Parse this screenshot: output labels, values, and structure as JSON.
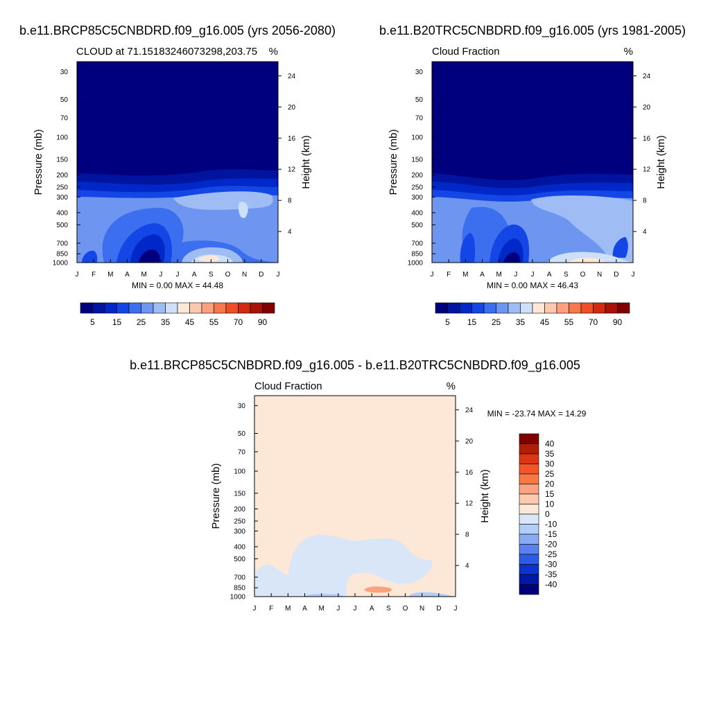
{
  "chart_data": [
    {
      "type": "heatmap",
      "title": "b.e11.BRCP85C5CNBDRD.f09_g16.005 (yrs 2056-2080)",
      "subtitle_left": "CLOUD at 71.15183246073298,203.75",
      "subtitle_right": "%",
      "ylabel": "Pressure (mb)",
      "ylabel_right": "Height (km)",
      "x_ticks": [
        "J",
        "F",
        "M",
        "A",
        "M",
        "J",
        "J",
        "A",
        "S",
        "O",
        "N",
        "D",
        "J"
      ],
      "y_ticks": [
        30,
        50,
        70,
        100,
        150,
        200,
        250,
        300,
        400,
        500,
        700,
        850,
        1000
      ],
      "y_ticks_right": [
        24,
        20,
        16,
        12,
        8,
        4
      ],
      "ylim": [
        1000,
        25
      ],
      "minmax_text": "MIN =   0.00 MAX =  44.48",
      "min": 0.0,
      "max": 44.48,
      "colorbar": {
        "orientation": "horizontal",
        "levels": [
          5,
          10,
          15,
          20,
          25,
          30,
          35,
          40,
          45,
          50,
          55,
          60,
          70,
          80,
          90
        ],
        "labels": [
          "5",
          "15",
          "25",
          "35",
          "45",
          "55",
          "70",
          "90"
        ],
        "colors": [
          "#00007f",
          "#0014a0",
          "#0028c8",
          "#1446e6",
          "#3c6ef0",
          "#6e96f0",
          "#a0bcf5",
          "#cde0f8",
          "#fde8d8",
          "#fcc8b0",
          "#fca07e",
          "#f8784e",
          "#ee4f2a",
          "#d02a10",
          "#a81206",
          "#800000"
        ]
      },
      "description_fields": [
        {
          "level_mb": 25,
          "values_by_month": [
            0,
            0,
            0,
            0,
            0,
            0,
            0,
            0,
            0,
            0,
            0,
            0,
            0
          ]
        },
        {
          "level_mb": 200,
          "values_by_month": [
            3,
            3,
            3,
            3,
            3,
            3,
            3,
            3,
            3,
            3,
            3,
            3,
            3
          ]
        },
        {
          "level_mb": 250,
          "values_by_month": [
            14,
            14,
            12,
            12,
            11,
            12,
            15,
            15,
            15,
            14,
            14,
            14,
            14
          ]
        },
        {
          "level_mb": 300,
          "values_by_month": [
            22,
            24,
            22,
            20,
            20,
            22,
            30,
            30,
            30,
            30,
            28,
            25,
            22
          ]
        },
        {
          "level_mb": 400,
          "values_by_month": [
            25,
            25,
            22,
            20,
            20,
            24,
            35,
            35,
            35,
            32,
            35,
            30,
            25
          ]
        },
        {
          "level_mb": 500,
          "values_by_month": [
            25,
            25,
            20,
            15,
            15,
            24,
            33,
            33,
            32,
            30,
            30,
            28,
            25
          ]
        },
        {
          "level_mb": 700,
          "values_by_month": [
            20,
            14,
            12,
            10,
            10,
            18,
            28,
            30,
            32,
            28,
            25,
            20,
            20
          ]
        },
        {
          "level_mb": 850,
          "values_by_month": [
            22,
            12,
            10,
            8,
            5,
            18,
            32,
            40,
            42,
            30,
            30,
            25,
            22
          ]
        },
        {
          "level_mb": 1000,
          "values_by_month": [
            20,
            10,
            10,
            10,
            10,
            15,
            28,
            32,
            30,
            25,
            25,
            20,
            20
          ]
        }
      ]
    },
    {
      "type": "heatmap",
      "title": "b.e11.B20TRC5CNBDRD.f09_g16.005 (yrs 1981-2005)",
      "subtitle_left": "Cloud Fraction",
      "subtitle_right": "%",
      "ylabel": "Pressure (mb)",
      "ylabel_right": "Height (km)",
      "x_ticks": [
        "J",
        "F",
        "M",
        "A",
        "M",
        "J",
        "J",
        "A",
        "S",
        "O",
        "N",
        "D",
        "J"
      ],
      "y_ticks": [
        30,
        50,
        70,
        100,
        150,
        200,
        250,
        300,
        400,
        500,
        700,
        850,
        1000
      ],
      "y_ticks_right": [
        24,
        20,
        16,
        12,
        8,
        4
      ],
      "ylim": [
        1000,
        25
      ],
      "minmax_text": "MIN =   0.00 MAX =  46.43",
      "min": 0.0,
      "max": 46.43,
      "colorbar": {
        "orientation": "horizontal",
        "levels": [
          5,
          10,
          15,
          20,
          25,
          30,
          35,
          40,
          45,
          50,
          55,
          60,
          70,
          80,
          90
        ],
        "labels": [
          "5",
          "15",
          "25",
          "35",
          "45",
          "55",
          "70",
          "90"
        ],
        "colors": [
          "#00007f",
          "#0014a0",
          "#0028c8",
          "#1446e6",
          "#3c6ef0",
          "#6e96f0",
          "#a0bcf5",
          "#cde0f8",
          "#fde8d8",
          "#fcc8b0",
          "#fca07e",
          "#f8784e",
          "#ee4f2a",
          "#d02a10",
          "#a81206",
          "#800000"
        ]
      },
      "description_fields": [
        {
          "level_mb": 25,
          "values_by_month": [
            0,
            0,
            0,
            0,
            0,
            0,
            0,
            0,
            0,
            0,
            0,
            0,
            0
          ]
        },
        {
          "level_mb": 200,
          "values_by_month": [
            3,
            3,
            3,
            3,
            3,
            3,
            3,
            3,
            3,
            3,
            3,
            3,
            3
          ]
        },
        {
          "level_mb": 250,
          "values_by_month": [
            14,
            14,
            14,
            12,
            12,
            12,
            14,
            15,
            15,
            14,
            14,
            14,
            14
          ]
        },
        {
          "level_mb": 300,
          "values_by_month": [
            22,
            22,
            20,
            20,
            22,
            25,
            30,
            32,
            30,
            30,
            28,
            24,
            22
          ]
        },
        {
          "level_mb": 400,
          "values_by_month": [
            25,
            22,
            20,
            20,
            22,
            28,
            30,
            35,
            35,
            33,
            32,
            28,
            25
          ]
        },
        {
          "level_mb": 500,
          "values_by_month": [
            25,
            20,
            20,
            15,
            15,
            22,
            28,
            32,
            35,
            34,
            30,
            28,
            25
          ]
        },
        {
          "level_mb": 700,
          "values_by_month": [
            20,
            12,
            18,
            12,
            10,
            18,
            25,
            30,
            33,
            30,
            28,
            20,
            20
          ]
        },
        {
          "level_mb": 850,
          "values_by_month": [
            22,
            10,
            16,
            10,
            5,
            15,
            25,
            32,
            36,
            35,
            30,
            20,
            22
          ]
        },
        {
          "level_mb": 1000,
          "values_by_month": [
            28,
            20,
            10,
            10,
            10,
            10,
            20,
            30,
            40,
            40,
            35,
            28,
            28
          ]
        }
      ]
    },
    {
      "type": "heatmap",
      "title": "b.e11.BRCP85C5CNBDRD.f09_g16.005 - b.e11.B20TRC5CNBDRD.f09_g16.005",
      "subtitle_left": "Cloud Fraction",
      "subtitle_right": "%",
      "ylabel": "Pressure (mb)",
      "ylabel_right": "Height (km)",
      "x_ticks": [
        "J",
        "F",
        "M",
        "A",
        "M",
        "J",
        "J",
        "A",
        "S",
        "O",
        "N",
        "D",
        "J"
      ],
      "y_ticks": [
        30,
        50,
        70,
        100,
        150,
        200,
        250,
        300,
        400,
        500,
        700,
        850,
        1000
      ],
      "y_ticks_right": [
        24,
        20,
        16,
        12,
        8,
        4
      ],
      "ylim": [
        1000,
        25
      ],
      "minmax_text": "MIN = -23.74 MAX =  14.29",
      "min": -23.74,
      "max": 14.29,
      "colorbar": {
        "orientation": "vertical",
        "levels": [
          40,
          35,
          30,
          25,
          20,
          15,
          10,
          0,
          -10,
          -15,
          -20,
          -25,
          -30,
          -35,
          -40
        ],
        "labels": [
          "40",
          "35",
          "30",
          "25",
          "20",
          "15",
          "10",
          "0",
          "-10",
          "-15",
          "-20",
          "-25",
          "-30",
          "-35",
          "-40"
        ],
        "colors": [
          "#800000",
          "#b01e0a",
          "#dc3712",
          "#f55528",
          "#fa7846",
          "#fba380",
          "#fdcab0",
          "#fde8d8",
          "#d8e6f8",
          "#b2cdf7",
          "#8aaaf3",
          "#5a82ee",
          "#2e5ae6",
          "#0c34cc",
          "#0018a6",
          "#00007f"
        ]
      },
      "description_fields": [
        {
          "level_mb": 25,
          "values_by_month": [
            2,
            2,
            2,
            2,
            2,
            2,
            2,
            2,
            2,
            2,
            2,
            2,
            2
          ]
        },
        {
          "level_mb": 300,
          "values_by_month": [
            2,
            2,
            2,
            2,
            2,
            2,
            2,
            2,
            2,
            2,
            2,
            2,
            2
          ]
        },
        {
          "level_mb": 400,
          "values_by_month": [
            2,
            2,
            2,
            -2,
            -2,
            -2,
            -2,
            -2,
            -2,
            2,
            2,
            2,
            2
          ]
        },
        {
          "level_mb": 500,
          "values_by_month": [
            2,
            2,
            1,
            -2,
            -2,
            -2,
            -2,
            -2,
            -2,
            -2,
            2,
            2,
            2
          ]
        },
        {
          "level_mb": 700,
          "values_by_month": [
            -2,
            -2,
            -2,
            -2,
            -2,
            -2,
            2,
            2,
            2,
            -2,
            2,
            2,
            -2
          ]
        },
        {
          "level_mb": 850,
          "values_by_month": [
            -2,
            -2,
            -2,
            -2,
            -2,
            -2,
            -2,
            12,
            2,
            2,
            2,
            2,
            -2
          ]
        },
        {
          "level_mb": 1000,
          "values_by_month": [
            -2,
            -2,
            -2,
            -5,
            -5,
            -5,
            -2,
            -2,
            -2,
            -2,
            -5,
            -5,
            -2
          ]
        }
      ]
    }
  ]
}
